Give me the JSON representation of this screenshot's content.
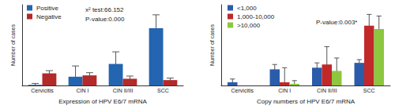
{
  "chart_data": [
    {
      "type": "bar",
      "x_label": "Expression of HPV E6/7 mRNA",
      "y_label": "Number of cases",
      "categories": [
        "Cervicitis",
        "CIN I",
        "CIN II/III",
        "SCC"
      ],
      "series": [
        {
          "name": "Positive",
          "color": "#2365b0",
          "values": [
            1,
            13,
            32,
            85
          ],
          "errors": [
            2,
            16,
            18,
            20
          ]
        },
        {
          "name": "Negative",
          "color": "#b22a2a",
          "values": [
            18,
            15,
            10,
            8
          ],
          "errors": [
            4,
            4,
            4,
            3
          ]
        }
      ],
      "ylim": [
        0,
        120
      ],
      "tick_labels": "x",
      "grid": false,
      "legend": "upper left",
      "annotations": [
        "x² test:66.152",
        "P-value:0.000"
      ]
    },
    {
      "type": "bar",
      "x_label": "Copy numbers of HPV E6/7 mRNA",
      "y_label": "Number of cases",
      "categories": [
        "Cervicitis",
        "CIN I",
        "CIN II/III",
        "SCC"
      ],
      "series": [
        {
          "name": "<1,000",
          "color": "#2a5caa",
          "values": [
            2,
            10,
            11,
            14
          ],
          "errors": [
            2,
            3,
            3,
            2
          ]
        },
        {
          "name": "1,000-10,000",
          "color": "#c0282a",
          "values": [
            0,
            2,
            13,
            37
          ],
          "errors": [
            0,
            9,
            11,
            7
          ]
        },
        {
          "name": ">10,000",
          "color": "#8dc63f",
          "values": [
            0,
            1,
            9,
            35
          ],
          "errors": [
            0,
            2,
            8,
            8
          ]
        }
      ],
      "ylim": [
        0,
        50
      ],
      "tick_labels": "x",
      "grid": false,
      "legend": "upper left",
      "annotations": [
        "P-value:0.003*"
      ]
    }
  ]
}
